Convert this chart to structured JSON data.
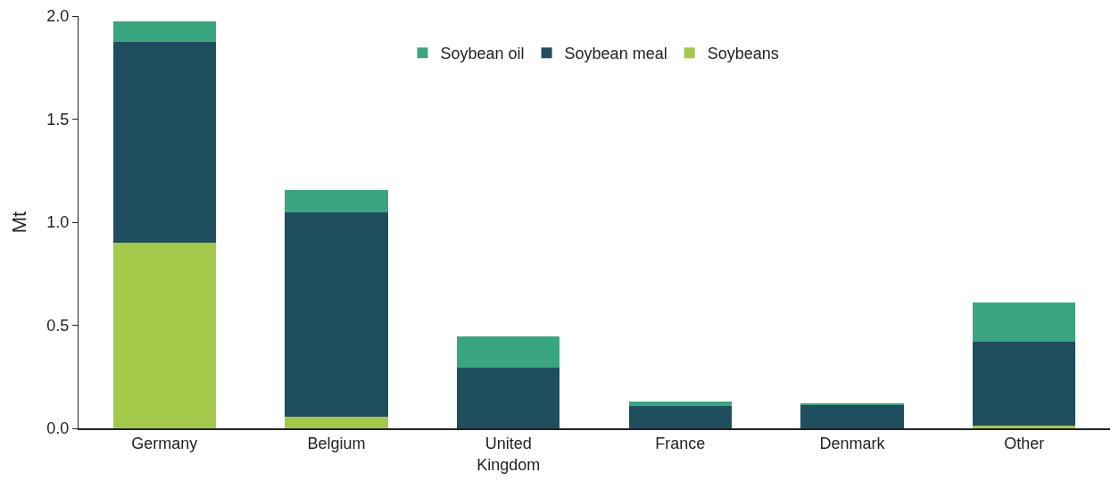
{
  "chart_data": {
    "type": "bar",
    "stacked": true,
    "ylabel": "Mt",
    "categories": [
      "Germany",
      "Belgium",
      "United Kingdom",
      "France",
      "Denmark",
      "Other"
    ],
    "series": [
      {
        "name": "Soybeans",
        "color": "#a3c94a",
        "values": [
          0.9,
          0.057,
          0,
          0,
          0,
          0.015
        ]
      },
      {
        "name": "Soybean meal",
        "color": "#1f4e5f",
        "values": [
          0.975,
          0.99,
          0.296,
          0.11,
          0.115,
          0.405
        ]
      },
      {
        "name": "Soybean oil",
        "color": "#3aa680",
        "values": [
          0.1,
          0.11,
          0.15,
          0.02,
          0.005,
          0.19
        ]
      }
    ],
    "ylim": [
      0,
      2
    ],
    "yticks": [
      {
        "value": 0,
        "label": "0.0"
      },
      {
        "value": 0.5,
        "label": "0.5"
      },
      {
        "value": 1,
        "label": "1.0"
      },
      {
        "value": 1.5,
        "label": "1.5"
      },
      {
        "value": 2,
        "label": "2.0"
      }
    ],
    "grid": false,
    "legend": "top"
  }
}
